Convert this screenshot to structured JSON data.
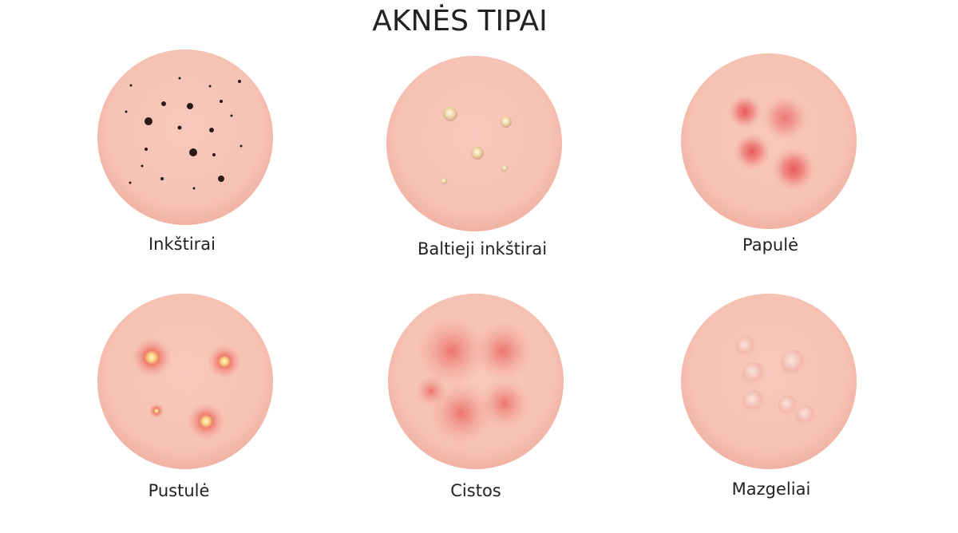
{
  "title": "AKNĖS TIPAI",
  "items": [
    "Inkštirai",
    "Baltieji inkštirai",
    "Papulė",
    "Pustulė",
    "Cistos",
    "Mazgeliai"
  ]
}
